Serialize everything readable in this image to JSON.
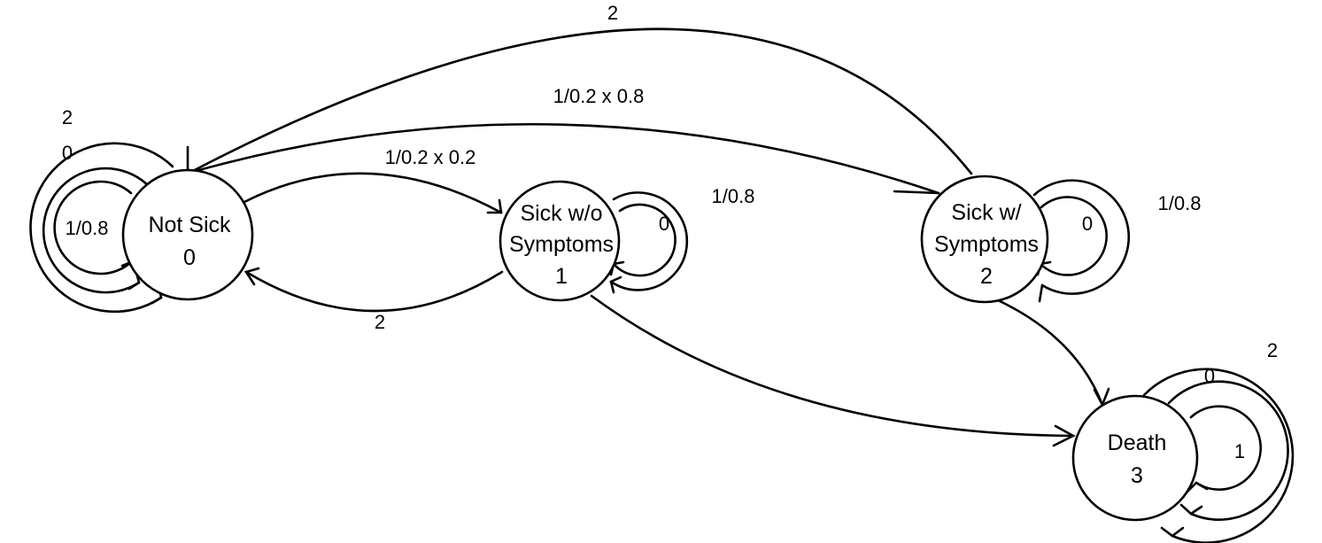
{
  "states": [
    {
      "id": "not-sick",
      "lines": [
        "Not Sick",
        "0"
      ]
    },
    {
      "id": "sick-without-symptoms",
      "lines": [
        "Sick w/o",
        "Symptoms",
        "1"
      ]
    },
    {
      "id": "sick-with-symptoms",
      "lines": [
        "Sick w/",
        "Symptoms",
        "2"
      ]
    },
    {
      "id": "death",
      "lines": [
        "Death",
        "3"
      ]
    }
  ],
  "transitions": {
    "not_sick_self_outer": "2",
    "not_sick_self_middle": "0",
    "not_sick_self_inner": "1/0.8",
    "not_sick_to_sick_without": "1/0.2 x 0.2",
    "not_sick_to_sick_with": "1/0.2 x 0.8",
    "sick_without_to_not_sick": "2",
    "sick_with_to_not_sick": "2",
    "sick_without_self_outer": "1/0.8",
    "sick_without_self_inner": "0",
    "sick_with_self_outer": "1/0.8",
    "sick_with_self_inner": "0",
    "death_self_outer": "2",
    "death_self_middle": "0",
    "death_self_inner": "1"
  }
}
